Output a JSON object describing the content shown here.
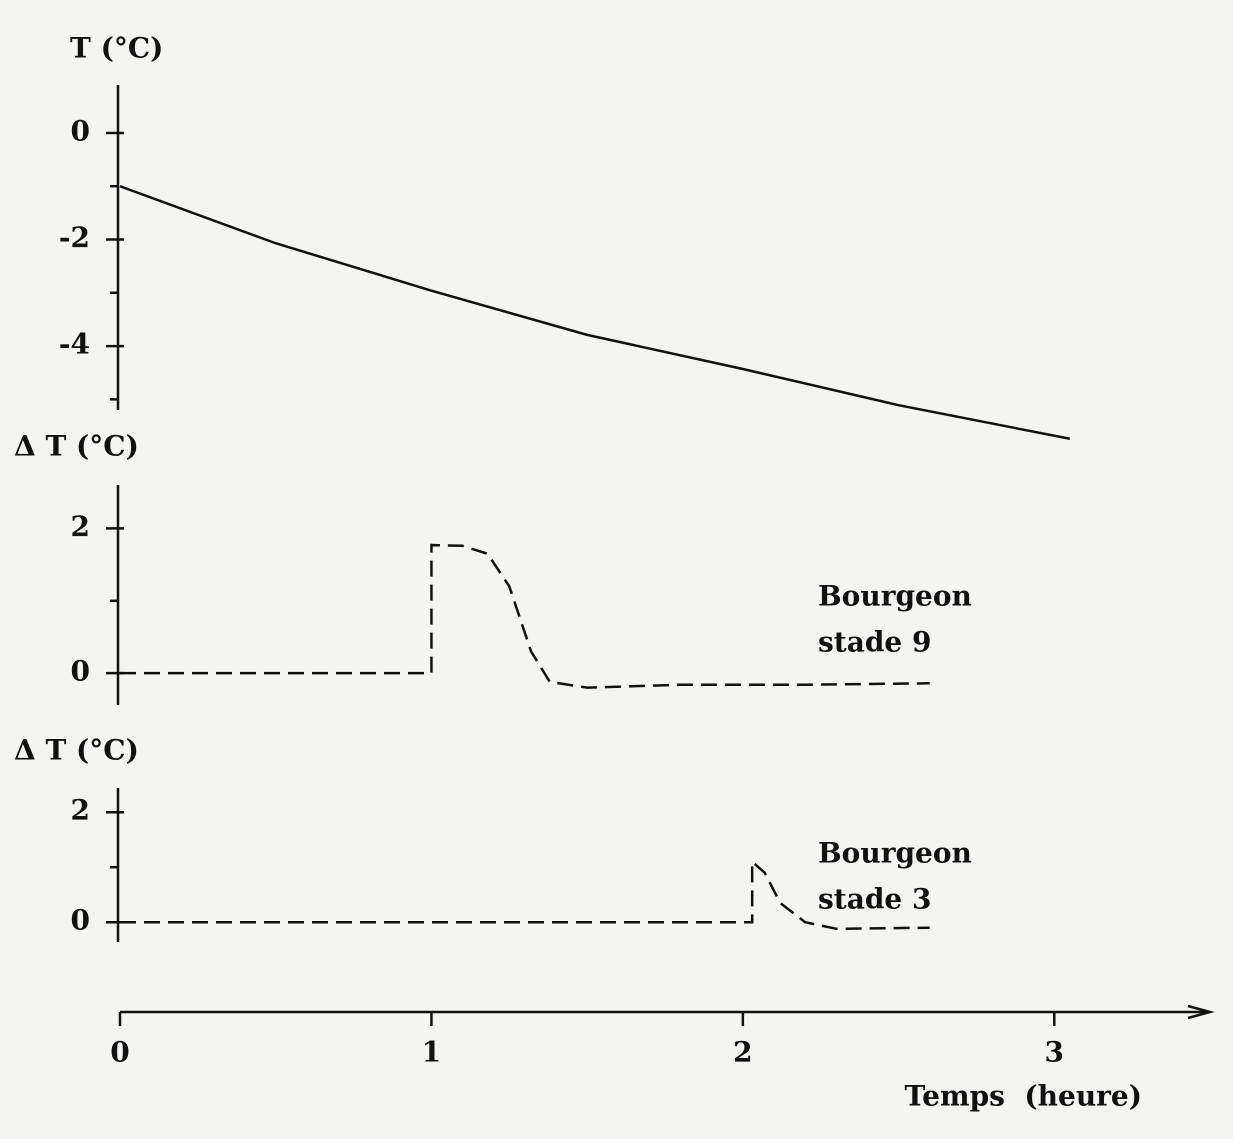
{
  "chart_data": [
    {
      "type": "line",
      "ylabel": "T (°C)",
      "xlim": [
        0,
        3.5
      ],
      "ylim": [
        -5.2,
        0.9
      ],
      "yticks": [
        0,
        -2,
        -4
      ],
      "yminorticks": [
        -1,
        -3,
        -5
      ],
      "line_style": "solid",
      "color": "#111111",
      "x": [
        0,
        0.5,
        1,
        1.5,
        2,
        2.5,
        3.05
      ],
      "values": [
        -1,
        -2.07,
        -2.96,
        -3.79,
        -4.43,
        -5.11,
        -5.74
      ]
    },
    {
      "type": "line",
      "ylabel": "Δ T (°C)",
      "xlim": [
        0,
        3.5
      ],
      "ylim": [
        -0.44,
        2.6
      ],
      "yticks": [
        0,
        2
      ],
      "yminorticks": [
        1
      ],
      "line_style": "dashed",
      "color": "#111111",
      "annotation": [
        "Bourgeon",
        "stade 9"
      ],
      "x": [
        0,
        1,
        1,
        1.1,
        1.18,
        1.25,
        1.32,
        1.38,
        1.5,
        1.8,
        2.2,
        2.6
      ],
      "values": [
        0,
        0,
        1.77,
        1.76,
        1.65,
        1.2,
        0.3,
        -0.12,
        -0.2,
        -0.16,
        -0.16,
        -0.14
      ]
    },
    {
      "type": "line",
      "ylabel": "Δ T (°C)",
      "xlim": [
        0,
        3.5
      ],
      "ylim": [
        -0.36,
        2.44
      ],
      "yticks": [
        0,
        2
      ],
      "yminorticks": [
        1
      ],
      "line_style": "dashed",
      "color": "#111111",
      "annotation": [
        "Bourgeon",
        "stade 3"
      ],
      "x": [
        0,
        2.03,
        2.03,
        2.07,
        2.12,
        2.2,
        2.3,
        2.6
      ],
      "values": [
        0,
        0,
        1.1,
        0.9,
        0.35,
        0,
        -0.12,
        -0.1
      ],
      "xticks": [
        0,
        1,
        2,
        3
      ],
      "xlabel": "Temps  (heure)"
    }
  ]
}
